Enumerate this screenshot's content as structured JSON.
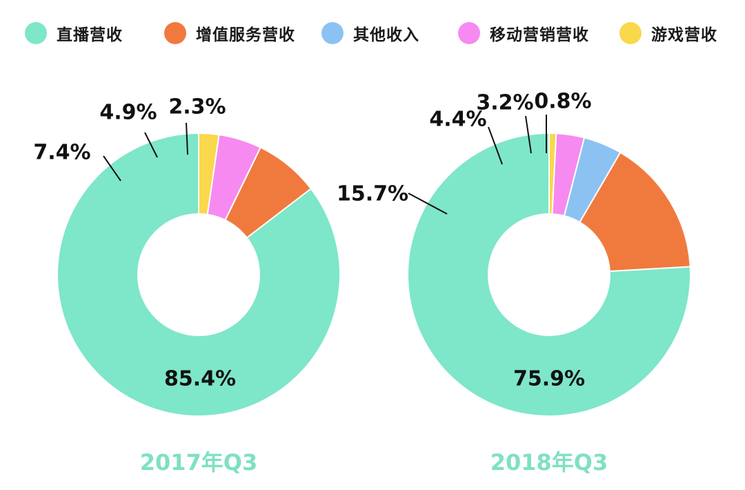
{
  "legend": [
    {
      "label": "直播营收",
      "color": "#7ee6c9"
    },
    {
      "label": "增值服务营收",
      "color": "#f07a3e"
    },
    {
      "label": "其他收入",
      "color": "#8cc2f2"
    },
    {
      "label": "移动营销营收",
      "color": "#f68af0"
    },
    {
      "label": "游戏营收",
      "color": "#f9d84b"
    }
  ],
  "chart_data": [
    {
      "type": "pie",
      "variant": "donut",
      "title": "2017年Q3",
      "categories": [
        "直播营收",
        "增值服务营收",
        "移动营销营收",
        "游戏营收"
      ],
      "values": [
        85.4,
        7.4,
        4.9,
        2.3
      ],
      "colors": [
        "#7ee6c9",
        "#f07a3e",
        "#f68af0",
        "#f9d84b"
      ],
      "labels": [
        "85.4%",
        "7.4%",
        "4.9%",
        "2.3%"
      ],
      "direction": "counterclockwise from top"
    },
    {
      "type": "pie",
      "variant": "donut",
      "title": "2018年Q3",
      "categories": [
        "直播营收",
        "增值服务营收",
        "其他收入",
        "移动营销营收",
        "游戏营收"
      ],
      "values": [
        75.9,
        15.7,
        4.4,
        3.2,
        0.8
      ],
      "colors": [
        "#7ee6c9",
        "#f07a3e",
        "#8cc2f2",
        "#f68af0",
        "#f9d84b"
      ],
      "labels": [
        "75.9%",
        "15.7%",
        "4.4%",
        "3.2%",
        "0.8%"
      ],
      "direction": "counterclockwise from top"
    }
  ]
}
